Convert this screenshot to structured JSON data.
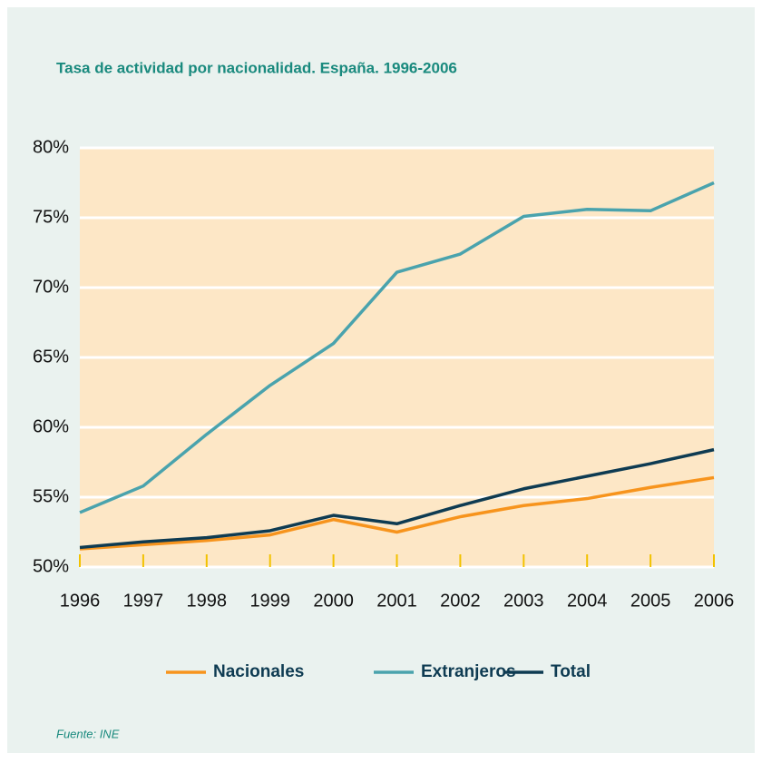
{
  "chart_data": {
    "type": "line",
    "title": "Tasa de actividad por nacionalidad. España. 1996-2006",
    "source": "Fuente:  INE",
    "x": [
      1996,
      1997,
      1998,
      1999,
      2000,
      2001,
      2002,
      2003,
      2004,
      2005,
      2006
    ],
    "xlim": [
      1996,
      2006
    ],
    "xticks": [
      1996,
      1997,
      1998,
      1999,
      2000,
      2001,
      2002,
      2003,
      2004,
      2005,
      2006
    ],
    "ylim": [
      50,
      80
    ],
    "yticks": [
      {
        "value": 50,
        "label": "50%"
      },
      {
        "value": 55,
        "label": "55%"
      },
      {
        "value": 60,
        "label": "60%"
      },
      {
        "value": 65,
        "label": "65%"
      },
      {
        "value": 70,
        "label": "70%"
      },
      {
        "value": 75,
        "label": "75%"
      },
      {
        "value": 80,
        "label": "80%"
      }
    ],
    "grid": true,
    "legend": "bottom",
    "series": [
      {
        "name": "Nacionales",
        "color": "#f7941d",
        "values": [
          51.3,
          51.6,
          51.9,
          52.3,
          53.4,
          52.5,
          53.6,
          54.4,
          54.9,
          55.7,
          56.4
        ]
      },
      {
        "name": "Extranjeros",
        "color": "#4aa3ad",
        "values": [
          53.9,
          55.8,
          59.5,
          63.0,
          66.0,
          71.1,
          72.4,
          75.1,
          75.6,
          75.5,
          77.5
        ]
      },
      {
        "name": "Total",
        "color": "#0e3b52",
        "values": [
          51.4,
          51.8,
          52.1,
          52.6,
          53.7,
          53.1,
          54.4,
          55.6,
          56.5,
          57.4,
          58.4
        ]
      }
    ]
  }
}
